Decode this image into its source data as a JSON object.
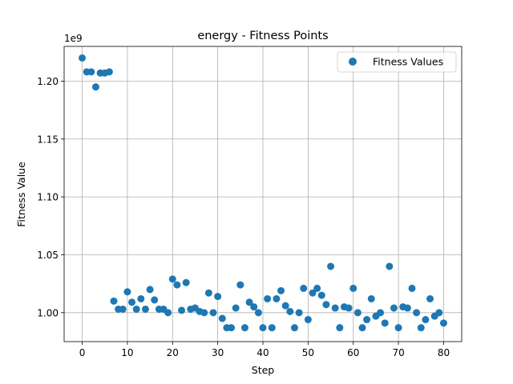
{
  "chart_data": {
    "type": "scatter",
    "title": "energy - Fitness Points",
    "xlabel": "Step",
    "ylabel": "Fitness Value",
    "offset_label": "1e9",
    "grid": true,
    "legend_position": "top-right",
    "xlim": [
      -4,
      84
    ],
    "ylim": [
      975000000,
      1230000000
    ],
    "x_ticks": [
      0,
      10,
      20,
      30,
      40,
      50,
      60,
      70,
      80
    ],
    "x_tick_labels": [
      "0",
      "10",
      "20",
      "30",
      "40",
      "50",
      "60",
      "70",
      "80"
    ],
    "y_ticks": [
      1000000000,
      1050000000,
      1100000000,
      1150000000,
      1200000000
    ],
    "y_tick_labels": [
      "1.00",
      "1.05",
      "1.10",
      "1.15",
      "1.20"
    ],
    "color": "#1f77b4",
    "series": [
      {
        "name": "Fitness Values",
        "x": [
          0,
          1,
          2,
          3,
          4,
          5,
          6,
          7,
          8,
          9,
          10,
          11,
          12,
          13,
          14,
          15,
          16,
          17,
          18,
          19,
          20,
          21,
          22,
          23,
          24,
          25,
          26,
          27,
          28,
          29,
          30,
          31,
          32,
          33,
          34,
          35,
          36,
          37,
          38,
          39,
          40,
          41,
          42,
          43,
          44,
          45,
          46,
          47,
          48,
          49,
          50,
          51,
          52,
          53,
          54,
          55,
          56,
          57,
          58,
          59,
          60,
          61,
          62,
          63,
          64,
          65,
          66,
          67,
          68,
          69,
          70,
          71,
          72,
          73,
          74,
          75,
          76,
          77,
          78,
          79,
          80
        ],
        "y": [
          1220000000,
          1208000000,
          1208000000,
          1195000000,
          1207000000,
          1207000000,
          1208000000,
          1010000000,
          1003000000,
          1003000000,
          1018000000,
          1009000000,
          1003000000,
          1012000000,
          1003000000,
          1020000000,
          1011000000,
          1003000000,
          1003000000,
          1000000000,
          1029000000,
          1024000000,
          1002000000,
          1026000000,
          1003000000,
          1004000000,
          1001000000,
          1000000000,
          1017000000,
          1000000000,
          1014000000,
          995000000,
          987000000,
          987000000,
          1004000000,
          1024000000,
          987000000,
          1009000000,
          1005000000,
          1000000000,
          987000000,
          1012000000,
          987000000,
          1012000000,
          1019000000,
          1006000000,
          1001000000,
          987000000,
          1000000000,
          1021000000,
          994000000,
          1017000000,
          1021000000,
          1015000000,
          1007000000,
          1040000000,
          1004000000,
          987000000,
          1005000000,
          1004000000,
          1021000000,
          1000000000,
          987000000,
          994000000,
          1012000000,
          997000000,
          1000000000,
          991000000,
          1040000000,
          1004000000,
          987000000,
          1005000000,
          1004000000,
          1021000000,
          1000000000,
          987000000,
          994000000,
          1012000000,
          997000000,
          1000000000,
          991000000
        ]
      }
    ]
  }
}
